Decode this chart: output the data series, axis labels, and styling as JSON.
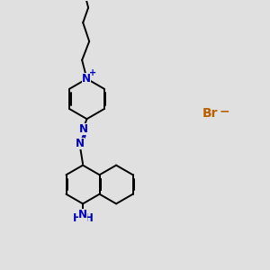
{
  "bg_color": "#e0e0e0",
  "bond_color": "#000000",
  "N_color": "#0000bb",
  "Br_color": "#b86000",
  "lw": 1.4,
  "dbo": 0.055,
  "xlim": [
    0,
    10
  ],
  "ylim": [
    0,
    10
  ],
  "Br_x": 7.8,
  "Br_y": 5.8,
  "minus_x": 8.35,
  "minus_y": 5.9
}
